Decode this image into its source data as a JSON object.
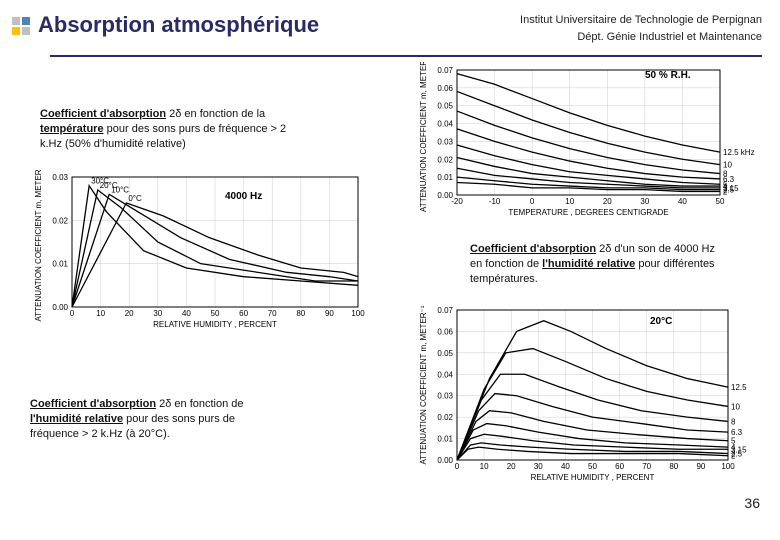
{
  "header": {
    "title": "Absorption atmosphérique",
    "institute": "Institut Universitaire de Technologie de Perpignan",
    "department": "Dépt. Génie Industriel et Maintenance"
  },
  "captions": {
    "top_left": {
      "bold": "Coefficient d'absorption",
      "text1": " 2δ en fonction de la ",
      "bold2": "température",
      "text2": " pour des sons purs de fréquence > 2 k.Hz (50% d'humidité relative)"
    },
    "mid_right": {
      "bold": "Coefficient d'absorption",
      "text1": " 2δ d'un son de 4000 Hz en fonction de ",
      "bold2": "l'humidité relative",
      "text2": " pour différentes températures."
    },
    "bot_left": {
      "bold": "Coefficient d'absorption",
      "text1": " 2δ en fonction de ",
      "bold2": "l'humidité relative",
      "text2": " pour des sons purs de fréquence > 2 k.Hz (à 20°C)."
    }
  },
  "chart_temp": {
    "type": "line",
    "x_label": "TEMPERATURE , DEGREES CENTIGRADE",
    "y_label": "ATTENUATION COEFFICIENT m, METER⁻¹",
    "rh_label": "50 % R.H.",
    "xlim": [
      -20,
      50
    ],
    "xtick_step": 10,
    "ylim": [
      0,
      0.07
    ],
    "ytick_step": 0.01,
    "series_labels": [
      "12.5 kHz",
      "10",
      "8",
      "6.3",
      "5",
      "4",
      "3.15",
      "2.5",
      "2"
    ],
    "series": [
      [
        [
          -20,
          0.068
        ],
        [
          -10,
          0.062
        ],
        [
          0,
          0.054
        ],
        [
          10,
          0.046
        ],
        [
          20,
          0.039
        ],
        [
          30,
          0.033
        ],
        [
          40,
          0.028
        ],
        [
          50,
          0.024
        ]
      ],
      [
        [
          -20,
          0.058
        ],
        [
          -10,
          0.05
        ],
        [
          0,
          0.042
        ],
        [
          10,
          0.035
        ],
        [
          20,
          0.029
        ],
        [
          30,
          0.024
        ],
        [
          40,
          0.02
        ],
        [
          50,
          0.017
        ]
      ],
      [
        [
          -20,
          0.047
        ],
        [
          -10,
          0.039
        ],
        [
          0,
          0.032
        ],
        [
          10,
          0.026
        ],
        [
          20,
          0.021
        ],
        [
          30,
          0.017
        ],
        [
          40,
          0.014
        ],
        [
          50,
          0.012
        ]
      ],
      [
        [
          -20,
          0.037
        ],
        [
          -10,
          0.03
        ],
        [
          0,
          0.024
        ],
        [
          10,
          0.019
        ],
        [
          20,
          0.015
        ],
        [
          30,
          0.012
        ],
        [
          40,
          0.01
        ],
        [
          50,
          0.009
        ]
      ],
      [
        [
          -20,
          0.028
        ],
        [
          -10,
          0.022
        ],
        [
          0,
          0.017
        ],
        [
          10,
          0.013
        ],
        [
          20,
          0.011
        ],
        [
          30,
          0.009
        ],
        [
          40,
          0.007
        ],
        [
          50,
          0.006
        ]
      ],
      [
        [
          -20,
          0.021
        ],
        [
          -10,
          0.016
        ],
        [
          0,
          0.012
        ],
        [
          10,
          0.01
        ],
        [
          20,
          0.008
        ],
        [
          30,
          0.006
        ],
        [
          40,
          0.005
        ],
        [
          50,
          0.005
        ]
      ],
      [
        [
          -20,
          0.015
        ],
        [
          -10,
          0.011
        ],
        [
          0,
          0.009
        ],
        [
          10,
          0.007
        ],
        [
          20,
          0.006
        ],
        [
          30,
          0.005
        ],
        [
          40,
          0.004
        ],
        [
          50,
          0.004
        ]
      ],
      [
        [
          -20,
          0.01
        ],
        [
          -10,
          0.008
        ],
        [
          0,
          0.006
        ],
        [
          10,
          0.005
        ],
        [
          20,
          0.004
        ],
        [
          30,
          0.004
        ],
        [
          40,
          0.003
        ],
        [
          50,
          0.003
        ]
      ],
      [
        [
          -20,
          0.007
        ],
        [
          -10,
          0.006
        ],
        [
          0,
          0.004
        ],
        [
          10,
          0.004
        ],
        [
          20,
          0.003
        ],
        [
          30,
          0.003
        ],
        [
          40,
          0.002
        ],
        [
          50,
          0.002
        ]
      ]
    ],
    "colors": {
      "curve": "#000000",
      "grid": "#cccccc",
      "bg": "#ffffff"
    }
  },
  "chart_humidity_temp": {
    "type": "line",
    "x_label": "RELATIVE HUMIDITY , PERCENT",
    "y_label": "ATTENUATION COEFFICIENT m, METER⁻¹",
    "freq_label": "4000 Hz",
    "xlim": [
      0,
      100
    ],
    "xtick_step": 10,
    "ylim": [
      0,
      0.03
    ],
    "ytick_step": 0.01,
    "temp_labels": [
      "30°C",
      "20°C",
      "10°C",
      "0°C"
    ],
    "series": [
      [
        [
          0,
          0
        ],
        [
          6,
          0.028
        ],
        [
          12,
          0.022
        ],
        [
          25,
          0.013
        ],
        [
          40,
          0.009
        ],
        [
          60,
          0.007
        ],
        [
          80,
          0.006
        ],
        [
          100,
          0.005
        ]
      ],
      [
        [
          0,
          0
        ],
        [
          9,
          0.027
        ],
        [
          17,
          0.023
        ],
        [
          30,
          0.015
        ],
        [
          45,
          0.01
        ],
        [
          65,
          0.008
        ],
        [
          85,
          0.006
        ],
        [
          100,
          0.006
        ]
      ],
      [
        [
          0,
          0
        ],
        [
          13,
          0.026
        ],
        [
          23,
          0.022
        ],
        [
          38,
          0.016
        ],
        [
          55,
          0.011
        ],
        [
          75,
          0.008
        ],
        [
          90,
          0.007
        ],
        [
          100,
          0.006
        ]
      ],
      [
        [
          0,
          0
        ],
        [
          19,
          0.024
        ],
        [
          32,
          0.021
        ],
        [
          48,
          0.016
        ],
        [
          65,
          0.012
        ],
        [
          80,
          0.009
        ],
        [
          95,
          0.008
        ],
        [
          100,
          0.007
        ]
      ]
    ],
    "colors": {
      "curve": "#000000",
      "grid": "#cccccc",
      "bg": "#ffffff"
    }
  },
  "chart_humidity_freq": {
    "type": "line",
    "x_label": "RELATIVE HUMIDITY , PERCENT",
    "y_label": "ATTENUATION COEFFICIENT m, METER⁻¹",
    "temp_label": "20°C",
    "xlim": [
      0,
      100
    ],
    "xtick_step": 10,
    "ylim": [
      0,
      0.07
    ],
    "ytick_step": 0.01,
    "freq_labels": [
      "12.5",
      "10",
      "8",
      "6.3",
      "5",
      "4",
      "3.15",
      "2.5",
      "2"
    ],
    "series": [
      [
        [
          0,
          0
        ],
        [
          12,
          0.038
        ],
        [
          22,
          0.06
        ],
        [
          32,
          0.065
        ],
        [
          42,
          0.06
        ],
        [
          55,
          0.052
        ],
        [
          70,
          0.044
        ],
        [
          85,
          0.038
        ],
        [
          100,
          0.034
        ]
      ],
      [
        [
          0,
          0
        ],
        [
          10,
          0.033
        ],
        [
          18,
          0.05
        ],
        [
          28,
          0.052
        ],
        [
          40,
          0.046
        ],
        [
          55,
          0.038
        ],
        [
          70,
          0.032
        ],
        [
          85,
          0.028
        ],
        [
          100,
          0.025
        ]
      ],
      [
        [
          0,
          0
        ],
        [
          9,
          0.028
        ],
        [
          16,
          0.04
        ],
        [
          25,
          0.04
        ],
        [
          38,
          0.034
        ],
        [
          52,
          0.028
        ],
        [
          68,
          0.023
        ],
        [
          85,
          0.02
        ],
        [
          100,
          0.018
        ]
      ],
      [
        [
          0,
          0
        ],
        [
          8,
          0.023
        ],
        [
          14,
          0.031
        ],
        [
          22,
          0.03
        ],
        [
          35,
          0.025
        ],
        [
          50,
          0.02
        ],
        [
          68,
          0.017
        ],
        [
          85,
          0.014
        ],
        [
          100,
          0.013
        ]
      ],
      [
        [
          0,
          0
        ],
        [
          7,
          0.018
        ],
        [
          12,
          0.023
        ],
        [
          20,
          0.022
        ],
        [
          32,
          0.018
        ],
        [
          48,
          0.014
        ],
        [
          65,
          0.012
        ],
        [
          85,
          0.01
        ],
        [
          100,
          0.009
        ]
      ],
      [
        [
          0,
          0
        ],
        [
          6,
          0.014
        ],
        [
          11,
          0.017
        ],
        [
          18,
          0.016
        ],
        [
          30,
          0.013
        ],
        [
          45,
          0.01
        ],
        [
          62,
          0.008
        ],
        [
          82,
          0.007
        ],
        [
          100,
          0.006
        ]
      ],
      [
        [
          0,
          0
        ],
        [
          5,
          0.01
        ],
        [
          10,
          0.012
        ],
        [
          17,
          0.011
        ],
        [
          28,
          0.009
        ],
        [
          43,
          0.007
        ],
        [
          62,
          0.006
        ],
        [
          82,
          0.005
        ],
        [
          100,
          0.005
        ]
      ],
      [
        [
          0,
          0
        ],
        [
          5,
          0.007
        ],
        [
          9,
          0.008
        ],
        [
          16,
          0.007
        ],
        [
          27,
          0.006
        ],
        [
          42,
          0.005
        ],
        [
          62,
          0.004
        ],
        [
          82,
          0.004
        ],
        [
          100,
          0.003
        ]
      ],
      [
        [
          0,
          0
        ],
        [
          4,
          0.005
        ],
        [
          8,
          0.006
        ],
        [
          15,
          0.005
        ],
        [
          26,
          0.004
        ],
        [
          42,
          0.003
        ],
        [
          62,
          0.003
        ],
        [
          82,
          0.003
        ],
        [
          100,
          0.002
        ]
      ]
    ],
    "colors": {
      "curve": "#000000",
      "grid": "#cccccc",
      "bg": "#ffffff"
    }
  },
  "page_number": "36"
}
